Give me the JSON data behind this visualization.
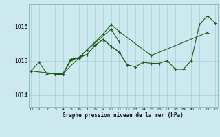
{
  "bg_color": "#cce9f0",
  "line_color": "#1a5c1a",
  "grid_color": "#a8cdd6",
  "xlabel": "Graphe pression niveau de la mer (hPa)",
  "yticks": [
    1014,
    1015,
    1016
  ],
  "xticks": [
    0,
    1,
    2,
    3,
    4,
    5,
    6,
    7,
    8,
    9,
    10,
    11,
    12,
    13,
    14,
    15,
    16,
    17,
    18,
    19,
    20,
    21,
    22,
    23
  ],
  "xlim": [
    -0.3,
    23.3
  ],
  "ylim": [
    1013.65,
    1016.65
  ],
  "series": [
    {
      "x": [
        0,
        1,
        2,
        3,
        4,
        5,
        6,
        7,
        8,
        9,
        10,
        11,
        12,
        13,
        14,
        15,
        16,
        17,
        18,
        19,
        20,
        21,
        22,
        23
      ],
      "y": [
        1014.7,
        1014.95,
        1014.62,
        1014.62,
        1014.62,
        1015.05,
        1015.08,
        1015.18,
        1015.45,
        1015.62,
        1015.42,
        1015.25,
        1014.88,
        1014.82,
        1014.95,
        1014.92,
        1014.92,
        1015.0,
        1014.75,
        1014.75,
        1015.0,
        1016.05,
        1016.3,
        1016.1
      ]
    },
    {
      "x": [
        0,
        3,
        4,
        7,
        9,
        10,
        11,
        15,
        22
      ],
      "y": [
        1014.7,
        1014.62,
        1014.62,
        1015.32,
        1015.78,
        1016.05,
        1015.85,
        1015.15,
        1015.82
      ]
    },
    {
      "x": [
        3,
        4,
        5,
        6,
        7,
        10,
        11
      ],
      "y": [
        1014.62,
        1014.62,
        1015.02,
        1015.08,
        1015.32,
        1015.92,
        1015.55
      ]
    },
    {
      "x": [
        3,
        4
      ],
      "y": [
        1014.62,
        1014.62
      ]
    },
    {
      "x": [
        3,
        4,
        5,
        6,
        7,
        8,
        9,
        10,
        11,
        12
      ],
      "y": [
        1014.62,
        1014.62,
        1015.02,
        1015.1,
        1015.18,
        1015.45,
        1015.62,
        1015.42,
        1015.25,
        1014.88
      ]
    }
  ]
}
